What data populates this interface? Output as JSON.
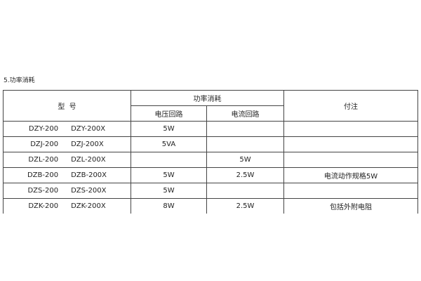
{
  "section_title": "5.功率消耗",
  "headers": {
    "model": "型  号",
    "power": "功率消耗",
    "voltage_circuit": "电压回路",
    "current_circuit": "电流回路",
    "notes": "付注"
  },
  "rows": [
    {
      "model_a": "DZY-200",
      "model_b": "DZY-200X",
      "voltage": "5W",
      "current": "",
      "note": ""
    },
    {
      "model_a": "DZJ-200",
      "model_b": "DZJ-200X",
      "voltage": "5VA",
      "current": "",
      "note": ""
    },
    {
      "model_a": "DZL-200",
      "model_b": "DZL-200X",
      "voltage": "",
      "current": "5W",
      "note": ""
    },
    {
      "model_a": "DZB-200",
      "model_b": "DZB-200X",
      "voltage": "5W",
      "current": "2.5W",
      "note": "电流动作规格5W"
    },
    {
      "model_a": "DZS-200",
      "model_b": "DZS-200X",
      "voltage": "5W",
      "current": "",
      "note": ""
    },
    {
      "model_a": "DZK-200",
      "model_b": "DZK-200X",
      "voltage": "8W",
      "current": "2.5W",
      "note": "包括外附电阻"
    }
  ]
}
